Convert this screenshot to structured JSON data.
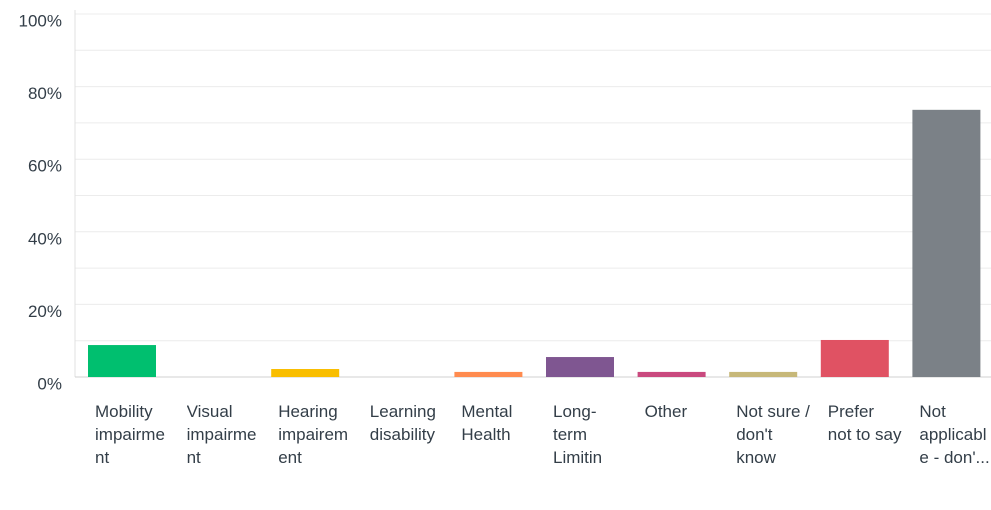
{
  "chart_data": {
    "type": "bar",
    "categories": [
      "Mobility impairment",
      "Visual impairment",
      "Hearing impairement",
      "Learning disability",
      "Mental Health",
      "Long-term Limitin",
      "Other",
      "Not sure / don't know",
      "Prefer not to say",
      "Not applicable - don'..."
    ],
    "values": [
      8.8,
      0,
      2.2,
      0,
      1.4,
      5.5,
      1.4,
      1.4,
      10.2,
      73.6
    ],
    "colors": [
      "#00bf6f",
      "#507cb6",
      "#f9be00",
      "#6bc8cd",
      "#ff8b4f",
      "#7f5691",
      "#c9497e",
      "#c7b879",
      "#e05263",
      "#7b8187"
    ],
    "ylim": [
      0,
      100
    ],
    "yticks": [
      {
        "value": 0,
        "label": "0%"
      },
      {
        "value": 20,
        "label": "20%"
      },
      {
        "value": 40,
        "label": "40%"
      },
      {
        "value": 60,
        "label": "60%"
      },
      {
        "value": 80,
        "label": "80%"
      },
      {
        "value": 100,
        "label": "100%"
      }
    ],
    "grid_ticks": [
      10,
      20,
      30,
      40,
      50,
      60,
      70,
      80,
      90,
      100
    ],
    "grid": true
  }
}
